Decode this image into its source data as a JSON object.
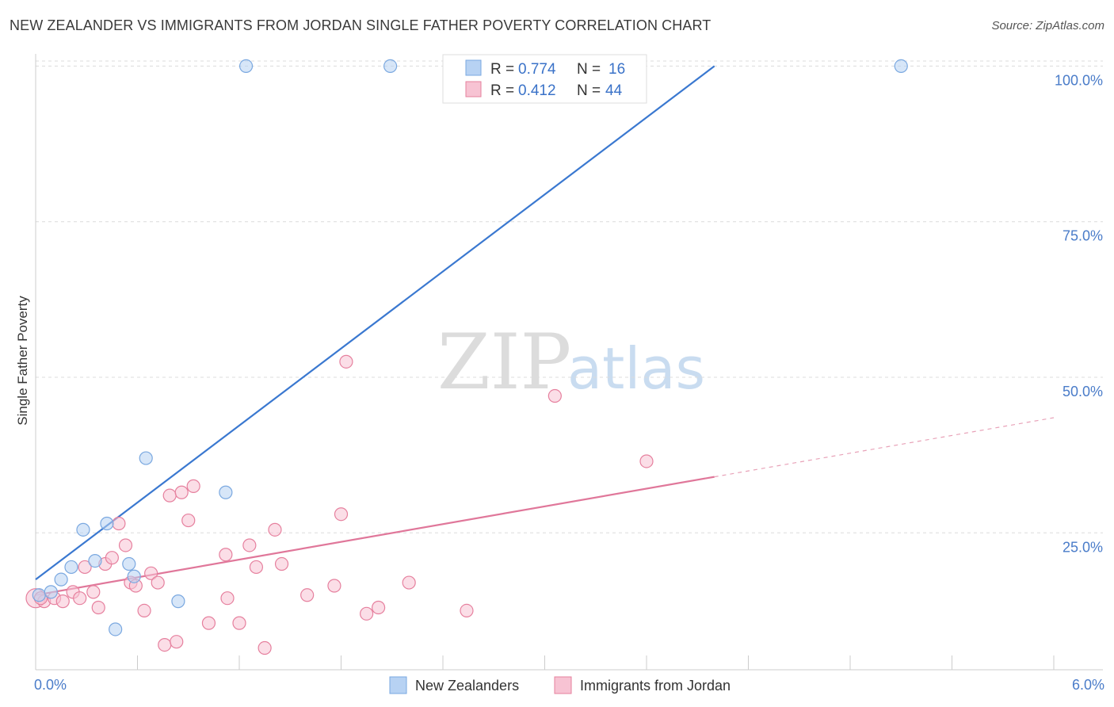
{
  "header": {
    "title": "NEW ZEALANDER VS IMMIGRANTS FROM JORDAN SINGLE FATHER POVERTY CORRELATION CHART",
    "source": "Source: ZipAtlas.com"
  },
  "watermark": {
    "zip": "ZIP",
    "atlas": "atlas"
  },
  "legend": {
    "r_label": "R =",
    "n_label": "N =",
    "items": [
      {
        "r": "0.774",
        "n": "16",
        "color": "#a8c8f0"
      },
      {
        "r": "0.412",
        "n": "44",
        "color": "#f5b8cb"
      }
    ]
  },
  "chart_data": {
    "type": "scatter",
    "title": "NEW ZEALANDER VS IMMIGRANTS FROM JORDAN SINGLE FATHER POVERTY CORRELATION CHART",
    "xlabel": "",
    "ylabel": "Single Father Poverty",
    "xlim": [
      0,
      6
    ],
    "ylim": [
      3,
      104
    ],
    "x_tick_labels": [
      "0.0%",
      "6.0%"
    ],
    "y_ticks": [
      25,
      50,
      75,
      100
    ],
    "y_tick_labels": [
      "25.0%",
      "50.0%",
      "75.0%",
      "100.0%"
    ],
    "grid": true,
    "legend_position": "top-center",
    "series": [
      {
        "name": "New Zealanders",
        "color": "#7aa8e0",
        "fill": "#b7d2f3",
        "points": [
          [
            0.02,
            15.0
          ],
          [
            0.09,
            15.5
          ],
          [
            0.15,
            17.5
          ],
          [
            0.21,
            19.5
          ],
          [
            0.28,
            25.5
          ],
          [
            0.35,
            20.5
          ],
          [
            0.42,
            26.5
          ],
          [
            0.47,
            9.5
          ],
          [
            0.55,
            20.0
          ],
          [
            0.58,
            18.0
          ],
          [
            0.65,
            37.0
          ],
          [
            0.84,
            14.0
          ],
          [
            1.12,
            31.5
          ],
          [
            1.24,
            100.0
          ],
          [
            2.09,
            100.0
          ],
          [
            5.1,
            100.0
          ]
        ],
        "trend": {
          "x": [
            0.0,
            4.0
          ],
          "y": [
            17.5,
            100.0
          ],
          "dashed_extension": false
        }
      },
      {
        "name": "Immigrants from Jordan",
        "color": "#e6809e",
        "fill": "#f7c3d3",
        "points": [
          [
            0.0,
            14.5
          ],
          [
            0.05,
            14.0
          ],
          [
            0.11,
            14.5
          ],
          [
            0.16,
            14.0
          ],
          [
            0.22,
            15.5
          ],
          [
            0.26,
            14.5
          ],
          [
            0.29,
            19.5
          ],
          [
            0.34,
            15.5
          ],
          [
            0.37,
            13.0
          ],
          [
            0.41,
            20.0
          ],
          [
            0.45,
            21.0
          ],
          [
            0.49,
            26.5
          ],
          [
            0.53,
            23.0
          ],
          [
            0.56,
            17.0
          ],
          [
            0.59,
            16.5
          ],
          [
            0.64,
            12.5
          ],
          [
            0.68,
            18.5
          ],
          [
            0.72,
            17.0
          ],
          [
            0.76,
            7.0
          ],
          [
            0.79,
            31.0
          ],
          [
            0.83,
            7.5
          ],
          [
            0.86,
            31.5
          ],
          [
            0.9,
            27.0
          ],
          [
            0.93,
            32.5
          ],
          [
            1.02,
            10.5
          ],
          [
            1.12,
            21.5
          ],
          [
            1.13,
            14.5
          ],
          [
            1.2,
            10.5
          ],
          [
            1.26,
            23.0
          ],
          [
            1.3,
            19.5
          ],
          [
            1.35,
            6.5
          ],
          [
            1.41,
            25.5
          ],
          [
            1.45,
            20.0
          ],
          [
            1.6,
            15.0
          ],
          [
            1.76,
            16.5
          ],
          [
            1.8,
            28.0
          ],
          [
            1.83,
            52.5
          ],
          [
            1.95,
            12.0
          ],
          [
            2.02,
            13.0
          ],
          [
            2.2,
            17.0
          ],
          [
            2.54,
            12.5
          ],
          [
            3.06,
            47.0
          ],
          [
            3.6,
            36.5
          ],
          [
            0.03,
            14.5
          ]
        ],
        "trend": {
          "x": [
            0.0,
            4.0
          ],
          "y": [
            15.0,
            34.0
          ],
          "dashed_to": [
            6.0,
            43.5
          ]
        }
      }
    ]
  }
}
